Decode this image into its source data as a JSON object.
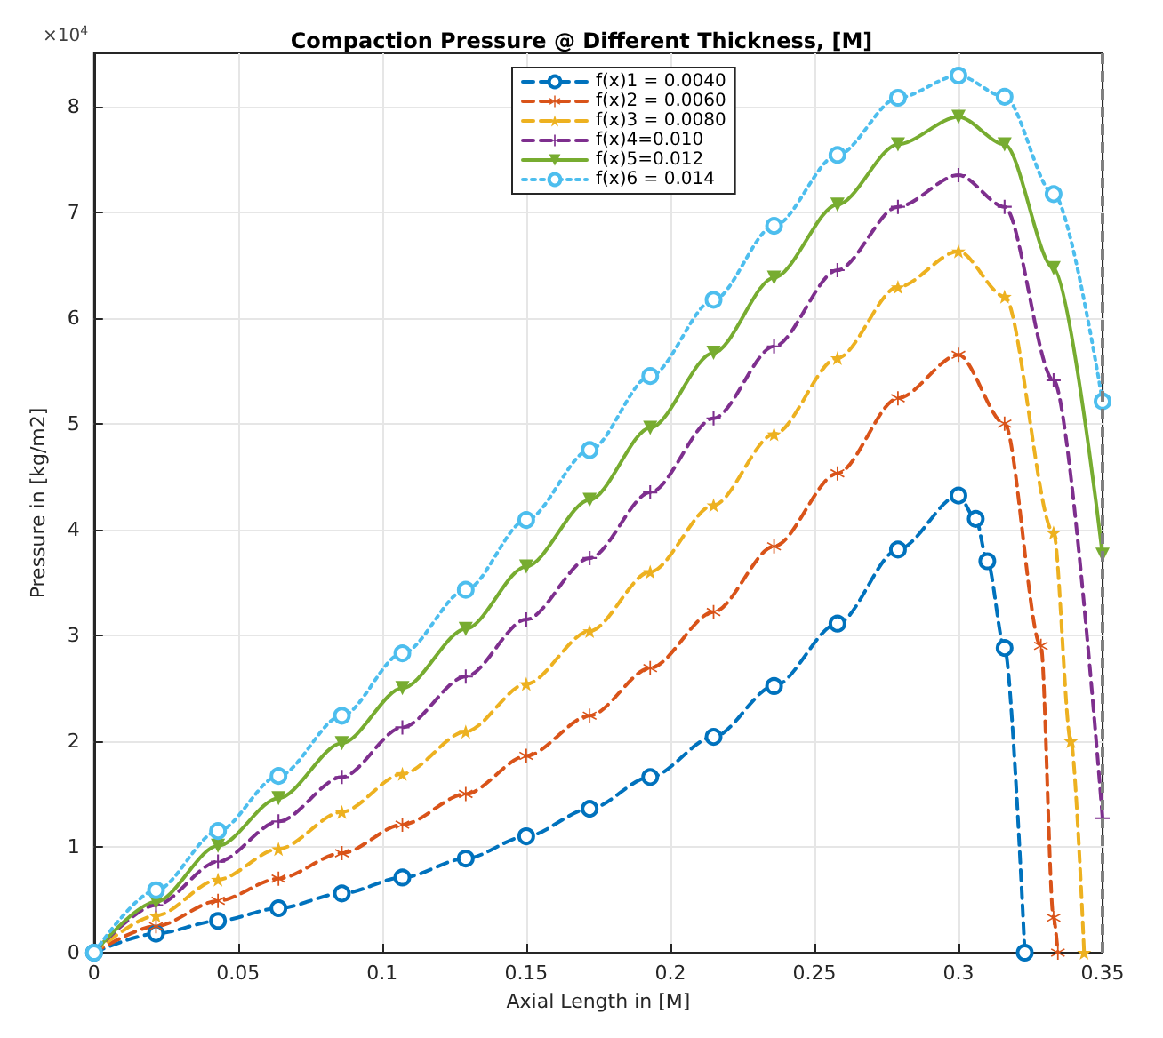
{
  "chart_data": {
    "type": "line",
    "title": "Compaction Pressure @ Different Thickness, [M]",
    "xlabel": "Axial Length in [M]",
    "ylabel": "Pressure in [kg/m2]",
    "annotations": [
      "×10$^{4}$"
    ],
    "xlim": [
      0,
      0.35
    ],
    "xticks": [
      0,
      0.05,
      0.1,
      0.15,
      0.2,
      0.25,
      0.3,
      0.35
    ],
    "ylim": [
      0,
      8.5
    ],
    "yticks": [
      0,
      1,
      2,
      3,
      4,
      5,
      6,
      7,
      8
    ],
    "grid": true,
    "legend": "top",
    "ref_lines": [
      {
        "axis": "x",
        "value": 0.35,
        "color": "#808080",
        "line_style": "dashed"
      }
    ],
    "series": [
      {
        "name": "f(x)1 = 0.0040",
        "color": "#0072bd",
        "marker": "circle",
        "line_style": "dashed",
        "x": [
          0,
          0.0215,
          0.043,
          0.064,
          0.086,
          0.107,
          0.129,
          0.15,
          0.172,
          0.193,
          0.215,
          0.236,
          0.258,
          0.279,
          0.3,
          0.306,
          0.31,
          0.316,
          0.323
        ],
        "values": [
          0,
          0.18,
          0.3,
          0.42,
          0.56,
          0.71,
          0.89,
          1.1,
          1.36,
          1.66,
          2.04,
          2.52,
          3.11,
          3.81,
          4.32,
          4.1,
          3.7,
          2.88,
          0
        ]
      },
      {
        "name": "f(x)2 = 0.0060",
        "color": "#d95319",
        "marker": "star",
        "line_style": "dashed",
        "x": [
          0,
          0.0215,
          0.043,
          0.064,
          0.086,
          0.107,
          0.129,
          0.15,
          0.172,
          0.193,
          0.215,
          0.236,
          0.258,
          0.279,
          0.3,
          0.316,
          0.3286,
          0.333,
          0.3345
        ],
        "values": [
          0,
          0.25,
          0.49,
          0.7,
          0.94,
          1.21,
          1.5,
          1.86,
          2.24,
          2.69,
          3.22,
          3.84,
          4.53,
          5.24,
          5.65,
          5.0,
          2.9,
          0.33,
          0
        ]
      },
      {
        "name": "f(x)3 = 0.0080",
        "color": "#edb120",
        "marker": "star",
        "line_style": "dashed",
        "x": [
          0,
          0.0215,
          0.043,
          0.064,
          0.086,
          0.107,
          0.129,
          0.15,
          0.172,
          0.193,
          0.215,
          0.236,
          0.258,
          0.279,
          0.3,
          0.316,
          0.333,
          0.339,
          0.3436
        ],
        "values": [
          0,
          0.35,
          0.69,
          0.98,
          1.33,
          1.69,
          2.09,
          2.54,
          3.04,
          3.6,
          4.23,
          4.9,
          5.62,
          6.29,
          6.63,
          6.2,
          3.97,
          2.0,
          0
        ]
      },
      {
        "name": "f(x)4=0.010",
        "color": "#7e2f8e",
        "marker": "cross",
        "line_style": "dashed",
        "x": [
          0,
          0.0215,
          0.043,
          0.064,
          0.086,
          0.107,
          0.129,
          0.15,
          0.172,
          0.193,
          0.215,
          0.236,
          0.258,
          0.279,
          0.3,
          0.316,
          0.333,
          0.35
        ],
        "values": [
          0,
          0.45,
          0.86,
          1.24,
          1.66,
          2.13,
          2.61,
          3.15,
          3.73,
          4.35,
          5.05,
          5.73,
          6.45,
          7.05,
          7.35,
          7.05,
          5.41,
          1.27
        ]
      },
      {
        "name": "f(x)5=0.012",
        "color": "#77ac30",
        "marker": "triangle",
        "line_style": "solid",
        "x": [
          0,
          0.0215,
          0.043,
          0.064,
          0.086,
          0.107,
          0.129,
          0.15,
          0.172,
          0.193,
          0.215,
          0.236,
          0.258,
          0.279,
          0.3,
          0.316,
          0.333,
          0.35
        ],
        "values": [
          0,
          0.48,
          1.01,
          1.46,
          1.98,
          2.5,
          3.06,
          3.65,
          4.28,
          4.96,
          5.67,
          6.38,
          7.07,
          7.64,
          7.9,
          7.64,
          6.47,
          3.76
        ]
      },
      {
        "name": "f(x)6 = 0.014",
        "color": "#4dbeee",
        "marker": "circle",
        "line_style": "dotted",
        "x": [
          0,
          0.0215,
          0.043,
          0.064,
          0.086,
          0.107,
          0.129,
          0.15,
          0.172,
          0.193,
          0.215,
          0.236,
          0.258,
          0.279,
          0.3,
          0.316,
          0.333,
          0.35
        ],
        "values": [
          0,
          0.59,
          1.15,
          1.67,
          2.24,
          2.83,
          3.43,
          4.09,
          4.75,
          5.45,
          6.17,
          6.87,
          7.54,
          8.08,
          8.29,
          8.09,
          7.17,
          5.21
        ]
      }
    ]
  }
}
